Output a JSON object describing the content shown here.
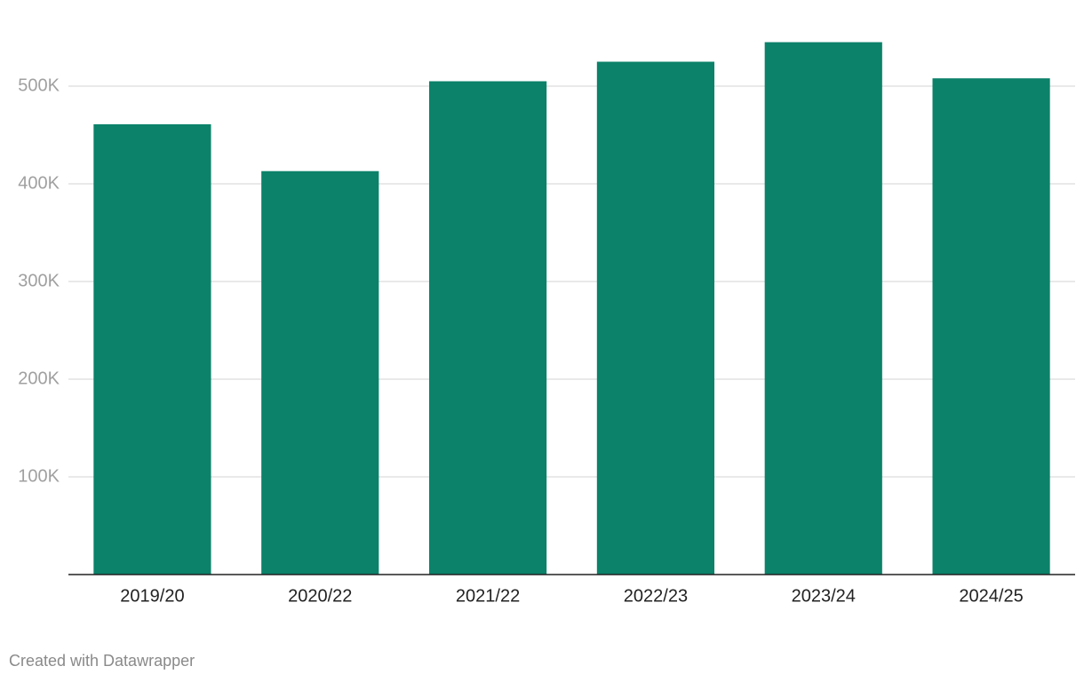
{
  "chart_data": {
    "type": "bar",
    "categories": [
      "2019/20",
      "2020/22",
      "2021/22",
      "2022/23",
      "2023/24",
      "2024/25"
    ],
    "values": [
      461000,
      413000,
      505000,
      525000,
      545000,
      508000
    ],
    "color": "#0b8269",
    "ylim": [
      0,
      560000
    ],
    "yticks": [
      {
        "value": 100000,
        "label": "100K"
      },
      {
        "value": 200000,
        "label": "200K"
      },
      {
        "value": 300000,
        "label": "300K"
      },
      {
        "value": 400000,
        "label": "400K"
      },
      {
        "value": 500000,
        "label": "500K"
      }
    ],
    "grid": true,
    "credit": "Created with Datawrapper"
  }
}
